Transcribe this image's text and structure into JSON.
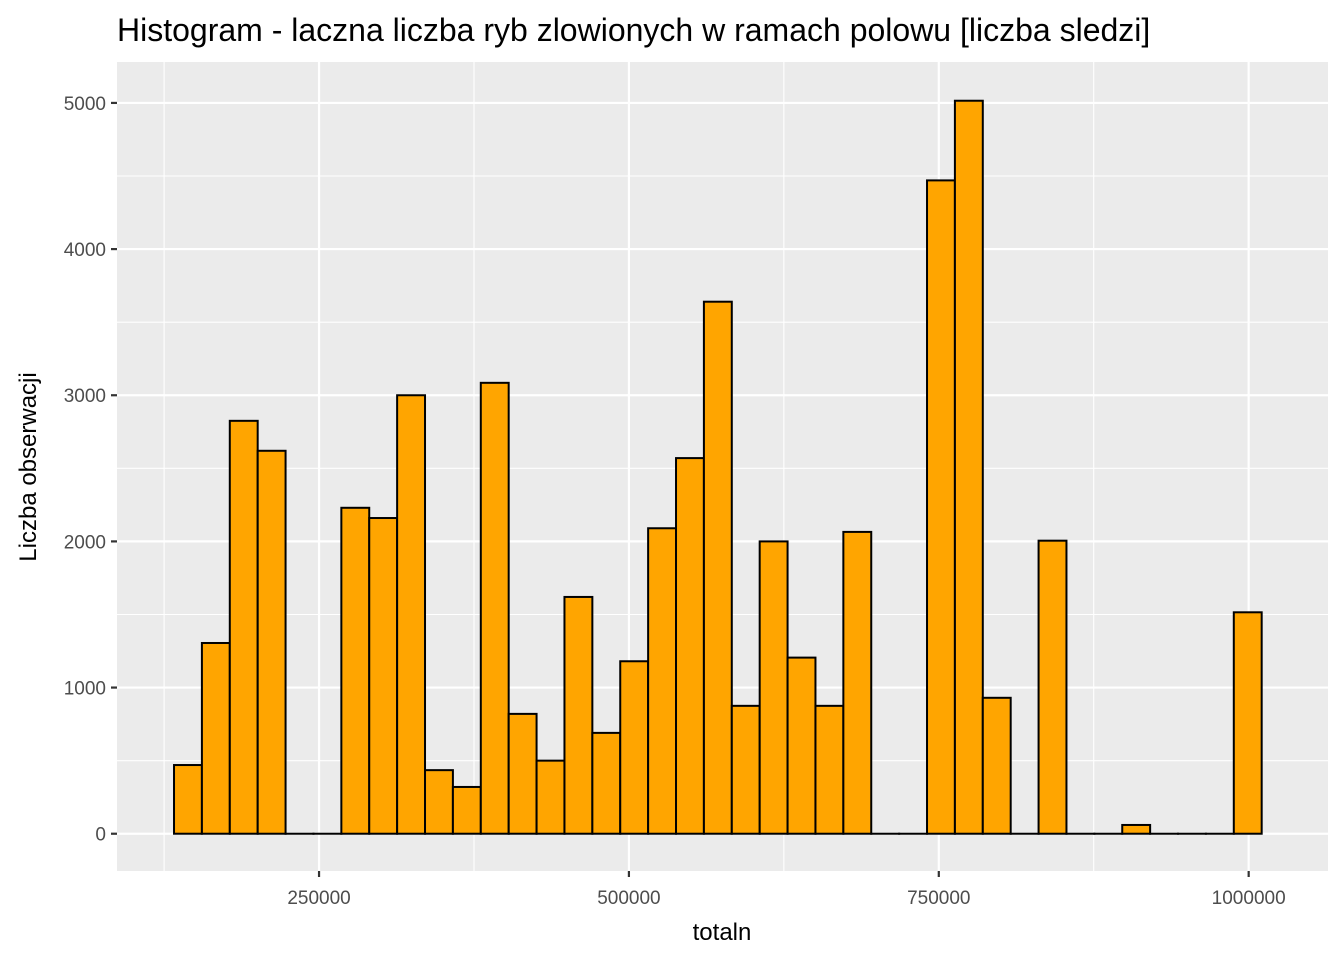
{
  "chart_data": {
    "type": "bar",
    "title": "Histogram - laczna liczba ryb zlowionych w ramach polowu [liczba sledzi]",
    "xlabel": "totaln",
    "ylabel": "Liczba obserwacji",
    "xlim": [
      87000,
      1064000
    ],
    "ylim": [
      -255,
      5280
    ],
    "xticks": [
      250000,
      500000,
      750000,
      1000000
    ],
    "xtick_labels": [
      "250000",
      "500000",
      "750000",
      "1000000"
    ],
    "yticks": [
      0,
      1000,
      2000,
      3000,
      4000,
      5000
    ],
    "ytick_labels": [
      "0",
      "1000",
      "2000",
      "3000",
      "4000",
      "5000"
    ],
    "bin_start": 133000,
    "bin_width": 22500,
    "values": [
      470,
      1305,
      2825,
      2620,
      0,
      0,
      2230,
      2160,
      3000,
      435,
      320,
      3085,
      820,
      500,
      1620,
      690,
      1180,
      2090,
      2570,
      3640,
      875,
      2000,
      1205,
      875,
      2065,
      0,
      0,
      4470,
      5015,
      930,
      0,
      2005,
      0,
      0,
      60,
      0,
      0,
      0,
      1515
    ],
    "grid": true,
    "colors": {
      "bar_fill": "#FFA500",
      "bar_outline": "#000000",
      "panel_background": "#EBEBEB",
      "grid_line": "#FFFFFF"
    }
  }
}
